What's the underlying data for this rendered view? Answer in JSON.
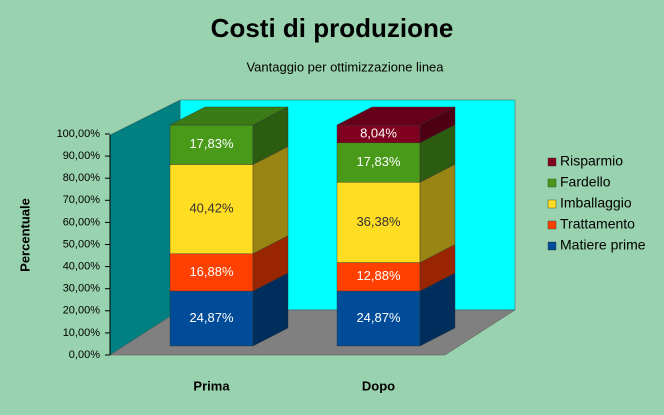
{
  "chart_data": {
    "type": "bar3d_stacked",
    "title": "Costi di produzione",
    "subtitle": "Vantaggio per ottimizzazione linea",
    "y_label": "Percentuale",
    "categories": [
      "Prima",
      "Dopo"
    ],
    "series": [
      {
        "name": "Matiere prime",
        "color": "#004c99",
        "values": [
          24.87,
          24.87
        ],
        "value_labels": [
          "24,87%",
          "24,87%"
        ]
      },
      {
        "name": "Trattamento",
        "color": "#ff4000",
        "values": [
          16.88,
          12.88
        ],
        "value_labels": [
          "16,88%",
          "12,88%"
        ]
      },
      {
        "name": "Imballaggio",
        "color": "#ffdd22",
        "values": [
          40.42,
          36.38
        ],
        "value_labels": [
          "40,42%",
          "36,38%"
        ]
      },
      {
        "name": "Fardello",
        "color": "#4a9a1a",
        "values": [
          17.83,
          17.83
        ],
        "value_labels": [
          "17,83%",
          "17,83%"
        ]
      },
      {
        "name": "Risparmio",
        "color": "#800020",
        "values": [
          null,
          8.04
        ],
        "value_labels": [
          null,
          "8,04%"
        ]
      }
    ],
    "ylim": [
      0,
      100
    ],
    "yticks": [
      {
        "value": 0,
        "label": "0,00%"
      },
      {
        "value": 10,
        "label": "10,00%"
      },
      {
        "value": 20,
        "label": "20,00%"
      },
      {
        "value": 30,
        "label": "30,00%"
      },
      {
        "value": 40,
        "label": "40,00%"
      },
      {
        "value": 50,
        "label": "50,00%"
      },
      {
        "value": 60,
        "label": "60,00%"
      },
      {
        "value": 70,
        "label": "70,00%"
      },
      {
        "value": 80,
        "label": "80,00%"
      },
      {
        "value": 90,
        "label": "90,00%"
      },
      {
        "value": 100,
        "label": "100,00%"
      }
    ],
    "grid": false,
    "legend": "right"
  }
}
